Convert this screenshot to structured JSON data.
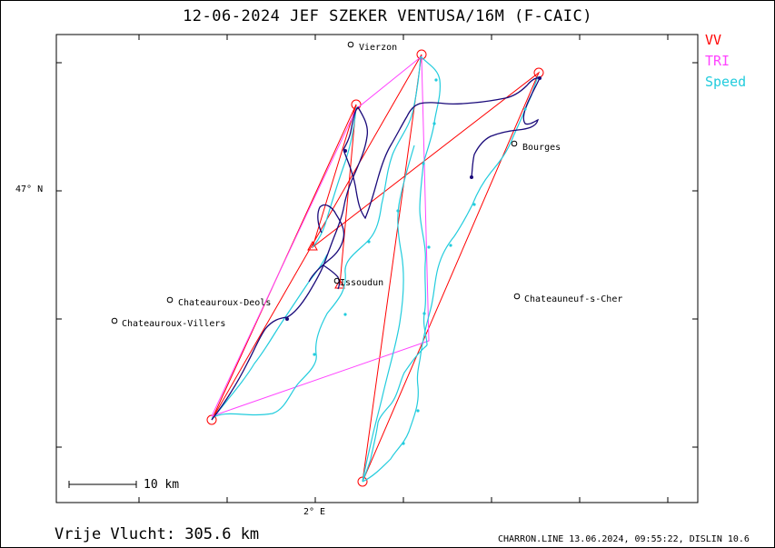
{
  "title": "12-06-2024   JEF SZEKER   VENTUSA/16M (F-CAIC)",
  "legend": [
    {
      "label": "VV",
      "color": "#ff0000"
    },
    {
      "label": "TRI",
      "color": "#ff00ff"
    },
    {
      "label": "Speed",
      "color": "#00cccc"
    }
  ],
  "axes": {
    "lat_label": "47° N",
    "lon_label": "2° E"
  },
  "scale_bar": {
    "label": "10  km"
  },
  "places": [
    {
      "name": "Vierzon"
    },
    {
      "name": "Bourges"
    },
    {
      "name": "Issoudun"
    },
    {
      "name": "Chateauroux-Deols"
    },
    {
      "name": "Chateauroux-Villers"
    },
    {
      "name": "Chateauneuf-s-Cher"
    }
  ],
  "footer": {
    "distance": "Vrije Vlucht:  305.6 km",
    "info": "CHARRON.LINE 13.06.2024, 09:55:22, DISLIN 10.6"
  },
  "colors": {
    "frame": "#000000",
    "track_dark": "#1a0a7a",
    "track_speed": "#22ccdd",
    "vv": "#ff0000",
    "tri": "#ff44ff"
  }
}
